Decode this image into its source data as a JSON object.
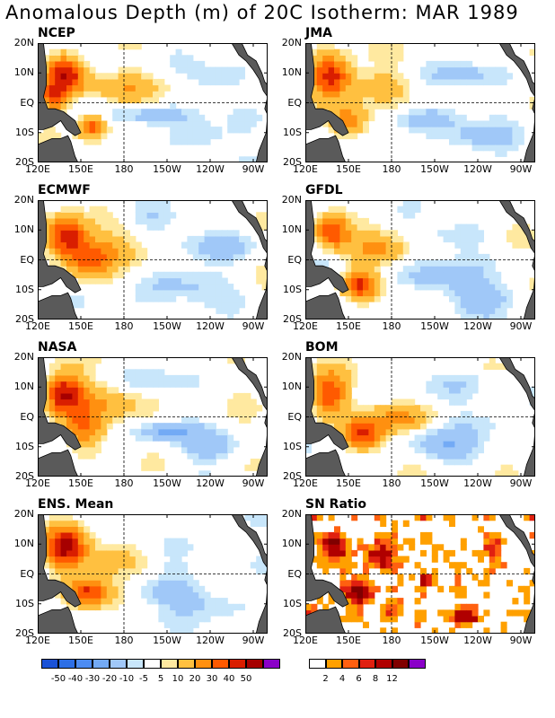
{
  "title": "Anomalous Depth (m) of 20C Isotherm: MAR 1989",
  "chart_data": [
    {
      "type": "heatmap",
      "title": "NCEP",
      "xticks": [
        "120E",
        "150E",
        "180",
        "150W",
        "120W",
        "90W"
      ],
      "yticks": [
        "20N",
        "10N",
        "EQ",
        "10S",
        "20S"
      ],
      "blobs": [
        [
          140,
          10,
          14,
          6,
          50
        ],
        [
          132,
          2,
          10,
          5,
          30
        ],
        [
          158,
          -8,
          10,
          4,
          40
        ],
        [
          175,
          5,
          30,
          5,
          15
        ],
        [
          200,
          -4,
          25,
          3,
          -15
        ],
        [
          230,
          -12,
          25,
          5,
          -12
        ],
        [
          245,
          8,
          20,
          4,
          -10
        ]
      ]
    },
    {
      "type": "heatmap",
      "title": "JMA",
      "xticks": [
        "120E",
        "150E",
        "180",
        "150W",
        "120W",
        "90W"
      ],
      "yticks": [
        "20N",
        "10N",
        "EQ",
        "10S",
        "20S"
      ],
      "blobs": [
        [
          138,
          9,
          14,
          7,
          50
        ],
        [
          150,
          -6,
          14,
          6,
          30
        ],
        [
          170,
          6,
          20,
          5,
          15
        ],
        [
          205,
          -5,
          25,
          4,
          -15
        ],
        [
          240,
          -12,
          25,
          5,
          -12
        ],
        [
          230,
          10,
          25,
          4,
          -10
        ]
      ]
    },
    {
      "type": "heatmap",
      "title": "ECMWF",
      "xticks": [
        "120E",
        "150E",
        "180",
        "150W",
        "120W",
        "90W"
      ],
      "yticks": [
        "20N",
        "10N",
        "EQ",
        "10S",
        "20S"
      ],
      "blobs": [
        [
          140,
          8,
          14,
          7,
          50
        ],
        [
          155,
          0,
          16,
          6,
          30
        ],
        [
          175,
          3,
          25,
          5,
          15
        ],
        [
          215,
          -8,
          30,
          5,
          -15
        ],
        [
          250,
          5,
          25,
          5,
          -12
        ],
        [
          200,
          14,
          20,
          4,
          -10
        ]
      ]
    },
    {
      "type": "heatmap",
      "title": "GFDL",
      "xticks": [
        "120E",
        "150E",
        "180",
        "150W",
        "120W",
        "90W"
      ],
      "yticks": [
        "20N",
        "10N",
        "EQ",
        "10S",
        "20S"
      ],
      "blobs": [
        [
          138,
          10,
          12,
          6,
          40
        ],
        [
          158,
          -8,
          12,
          5,
          40
        ],
        [
          170,
          3,
          22,
          5,
          20
        ],
        [
          210,
          -6,
          30,
          5,
          -15
        ],
        [
          245,
          -12,
          25,
          5,
          -15
        ],
        [
          225,
          8,
          25,
          4,
          -10
        ]
      ]
    },
    {
      "type": "heatmap",
      "title": "NASA",
      "xticks": [
        "120E",
        "150E",
        "180",
        "150W",
        "120W",
        "90W"
      ],
      "yticks": [
        "20N",
        "10N",
        "EQ",
        "10S",
        "20S"
      ],
      "blobs": [
        [
          138,
          8,
          14,
          7,
          50
        ],
        [
          152,
          -4,
          14,
          6,
          30
        ],
        [
          170,
          5,
          25,
          6,
          15
        ],
        [
          210,
          -5,
          20,
          3,
          -20
        ],
        [
          245,
          -10,
          25,
          5,
          -12
        ],
        [
          200,
          12,
          20,
          4,
          -8
        ]
      ]
    },
    {
      "type": "heatmap",
      "title": "BOM",
      "xticks": [
        "120E",
        "150E",
        "180",
        "150W",
        "120W",
        "90W"
      ],
      "yticks": [
        "20N",
        "10N",
        "EQ",
        "10S",
        "20S"
      ],
      "blobs": [
        [
          136,
          8,
          12,
          7,
          40
        ],
        [
          160,
          -6,
          14,
          5,
          40
        ],
        [
          185,
          0,
          25,
          5,
          20
        ],
        [
          215,
          -8,
          25,
          5,
          -15
        ],
        [
          250,
          -2,
          25,
          5,
          -12
        ],
        [
          230,
          12,
          25,
          4,
          -10
        ]
      ]
    },
    {
      "type": "heatmap",
      "title": "ENS. Mean",
      "xticks": [
        "120E",
        "150E",
        "180",
        "150W",
        "120W",
        "90W"
      ],
      "yticks": [
        "20N",
        "10N",
        "EQ",
        "10S",
        "20S"
      ],
      "blobs": [
        [
          139,
          9,
          14,
          7,
          50
        ],
        [
          156,
          -6,
          14,
          5,
          40
        ],
        [
          175,
          4,
          25,
          5,
          15
        ],
        [
          210,
          -6,
          25,
          4,
          -15
        ],
        [
          245,
          -10,
          25,
          5,
          -12
        ],
        [
          225,
          10,
          25,
          4,
          -8
        ]
      ]
    },
    {
      "type": "heatmap",
      "title": "SN Ratio",
      "xticks": [
        "120E",
        "150E",
        "180",
        "150W",
        "120W",
        "90W"
      ],
      "yticks": [
        "20N",
        "10N",
        "EQ",
        "10S",
        "20S"
      ],
      "blobs": [
        [
          140,
          9,
          8,
          4,
          12
        ],
        [
          158,
          -6,
          8,
          4,
          12
        ],
        [
          170,
          6,
          10,
          4,
          8
        ],
        [
          205,
          -2,
          6,
          2,
          10
        ],
        [
          232,
          -14,
          8,
          3,
          8
        ],
        [
          250,
          8,
          6,
          3,
          6
        ],
        [
          180,
          -12,
          8,
          3,
          6
        ],
        [
          128,
          -15,
          5,
          3,
          6
        ]
      ]
    }
  ],
  "colorbar_anom": {
    "labels": [
      "-50",
      "-40",
      "-30",
      "-20",
      "-10",
      "-5",
      "5",
      "10",
      "20",
      "30",
      "40",
      "50"
    ],
    "colors": [
      "#1a52d6",
      "#2d6fe6",
      "#4d8cf2",
      "#73aaf5",
      "#a0c8f8",
      "#c8e6fb",
      "#ffffff",
      "#ffe9a0",
      "#ffc040",
      "#ff9010",
      "#ff5a00",
      "#d91e00",
      "#a60000",
      "#8a00c8"
    ]
  },
  "colorbar_sn": {
    "labels": [
      "2",
      "4",
      "6",
      "8",
      "12"
    ],
    "colors": [
      "#ffffff",
      "#ffa000",
      "#ff6010",
      "#e02010",
      "#b00000",
      "#800000",
      "#8a00c8"
    ]
  }
}
